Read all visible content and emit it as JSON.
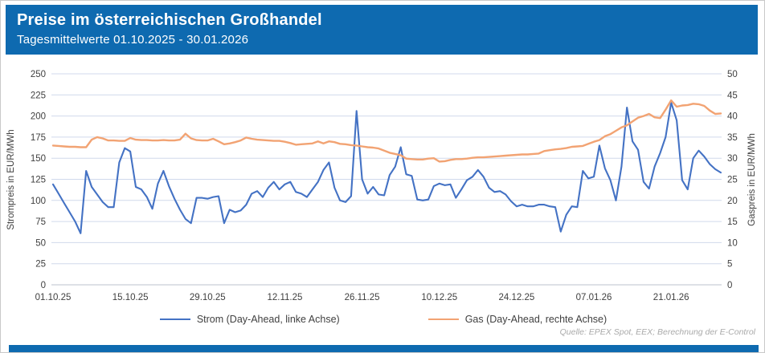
{
  "header": {
    "title": "Preise im österreichischen Großhandel",
    "subtitle": "Tagesmittelwerte 01.10.2025 - 30.01.2026"
  },
  "source": "Quelle: EPEX Spot, EEX; Berechnung der E-Control",
  "colors": {
    "banner_blue": "#0E6AB0",
    "strom_line": "#4472C4",
    "gas_line": "#F2A373",
    "gridline": "#D0D9EC",
    "zero_axis": "#BDC3CC",
    "tick_text": "#3F3F3F",
    "source_text": "#A9A9A9"
  },
  "chart_data": {
    "type": "line",
    "title": "Preise im österreichischen Großhandel",
    "subtitle": "Tagesmittelwerte 01.10.2025 - 30.01.2026",
    "date_start": "01.10.2025",
    "date_end": "30.01.2026",
    "x_tick_labels": [
      "01.10.25",
      "15.10.25",
      "29.10.25",
      "12.11.25",
      "26.11.25",
      "10.12.25",
      "24.12.25",
      "07.01.26",
      "21.01.26"
    ],
    "x_tick_interval_days": 14,
    "grid": "horizontal",
    "legend_position": "bottom",
    "left_axis": {
      "label": "Strompreis in EUR/MWh",
      "min": 0,
      "max": 250,
      "step": 25,
      "ticks": [
        0,
        25,
        50,
        75,
        100,
        125,
        150,
        175,
        200,
        225,
        250
      ]
    },
    "right_axis": {
      "label": "Gaspreis in EUR/MWh",
      "min": 0,
      "max": 50,
      "step": 5,
      "ticks": [
        0,
        5,
        10,
        15,
        20,
        25,
        30,
        35,
        40,
        45,
        50
      ]
    },
    "series": [
      {
        "name": "Strom (Day-Ahead, linke Achse)",
        "axis": "left",
        "color": "#4472C4",
        "values": [
          119,
          108,
          97,
          86,
          75,
          61,
          135,
          116,
          107,
          98,
          92,
          92,
          145,
          162,
          158,
          116,
          113,
          104,
          90,
          120,
          135,
          117,
          102,
          89,
          78,
          73,
          103,
          103,
          102,
          104,
          105,
          73,
          89,
          86,
          88,
          95,
          108,
          111,
          104,
          115,
          122,
          113,
          119,
          122,
          110,
          108,
          104,
          113,
          122,
          136,
          145,
          115,
          100,
          98,
          105,
          206,
          125,
          108,
          116,
          107,
          106,
          130,
          140,
          163,
          131,
          129,
          101,
          100,
          101,
          117,
          120,
          118,
          119,
          103,
          113,
          124,
          128,
          136,
          128,
          115,
          110,
          111,
          107,
          99,
          93,
          95,
          93,
          93,
          95,
          95,
          93,
          92,
          63,
          83,
          93,
          92,
          135,
          126,
          128,
          165,
          138,
          124,
          100,
          140,
          210,
          170,
          160,
          122,
          114,
          140,
          156,
          175,
          216,
          195,
          124,
          113,
          150,
          159,
          152,
          143,
          137,
          133
        ]
      },
      {
        "name": "Gas (Day-Ahead, rechte Achse)",
        "axis": "right",
        "color": "#F2A373",
        "values": [
          33.0,
          32.9,
          32.8,
          32.7,
          32.7,
          32.6,
          32.6,
          34.4,
          35.0,
          34.7,
          34.2,
          34.2,
          34.1,
          34.1,
          34.8,
          34.4,
          34.3,
          34.3,
          34.2,
          34.2,
          34.3,
          34.2,
          34.2,
          34.4,
          35.8,
          34.7,
          34.3,
          34.2,
          34.2,
          34.6,
          34.0,
          33.3,
          33.5,
          33.8,
          34.2,
          34.9,
          34.6,
          34.4,
          34.3,
          34.2,
          34.1,
          34.1,
          33.9,
          33.6,
          33.2,
          33.3,
          33.4,
          33.5,
          34.0,
          33.5,
          34.0,
          33.8,
          33.4,
          33.3,
          33.1,
          33.0,
          32.8,
          32.6,
          32.5,
          32.3,
          31.8,
          31.3,
          31.0,
          30.7,
          29.9,
          29.8,
          29.7,
          29.7,
          29.9,
          30.0,
          29.2,
          29.3,
          29.6,
          29.8,
          29.8,
          29.9,
          30.1,
          30.2,
          30.2,
          30.3,
          30.4,
          30.5,
          30.6,
          30.7,
          30.8,
          30.9,
          30.9,
          31.0,
          31.1,
          31.7,
          31.9,
          32.1,
          32.2,
          32.4,
          32.7,
          32.8,
          32.9,
          33.4,
          33.9,
          34.3,
          35.2,
          35.7,
          36.5,
          37.3,
          37.8,
          38.7,
          39.6,
          40.0,
          40.5,
          39.7,
          39.5,
          41.5,
          43.7,
          42.2,
          42.5,
          42.6,
          42.9,
          42.8,
          42.4,
          41.3,
          40.5,
          40.6
        ]
      }
    ]
  }
}
